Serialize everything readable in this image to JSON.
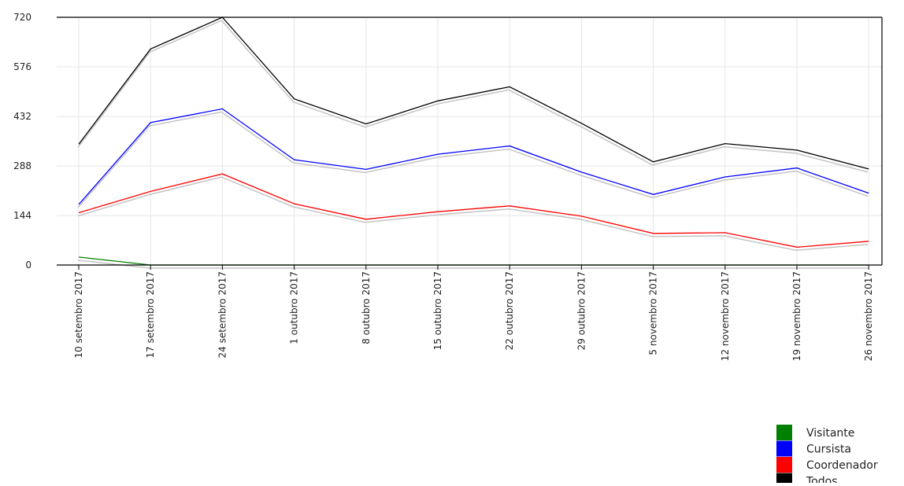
{
  "chart_data": {
    "type": "line",
    "title": "",
    "xlabel": "",
    "ylabel": "",
    "categories": [
      "10 setembro 2017",
      "17 setembro 2017",
      "24 setembro 2017",
      "1 outubro 2017",
      "8 outubro 2017",
      "15 outubro 2017",
      "22 outubro 2017",
      "29 outubro 2017",
      "5 novembro 2017",
      "12 novembro 2017",
      "19 novembro 2017",
      "26 novembro 2017"
    ],
    "ylim": [
      0,
      720
    ],
    "yticks": [
      0,
      144,
      288,
      432,
      576,
      720
    ],
    "grid": true,
    "legend_position": "bottom-right",
    "series": [
      {
        "name": "Visitante",
        "color": "#008000",
        "values": [
          23,
          0,
          0,
          0,
          0,
          0,
          0,
          0,
          0,
          0,
          0,
          0
        ]
      },
      {
        "name": "Cursista",
        "color": "#0000ff",
        "values": [
          176,
          414,
          454,
          306,
          278,
          322,
          346,
          270,
          205,
          256,
          282,
          209
        ]
      },
      {
        "name": "Coordenador",
        "color": "#ff0000",
        "values": [
          152,
          214,
          265,
          178,
          133,
          155,
          172,
          142,
          92,
          94,
          52,
          69
        ]
      },
      {
        "name": "Todos",
        "color": "#000000",
        "values": [
          351,
          628,
          720,
          483,
          410,
          477,
          518,
          412,
          300,
          353,
          334,
          279
        ]
      }
    ]
  }
}
